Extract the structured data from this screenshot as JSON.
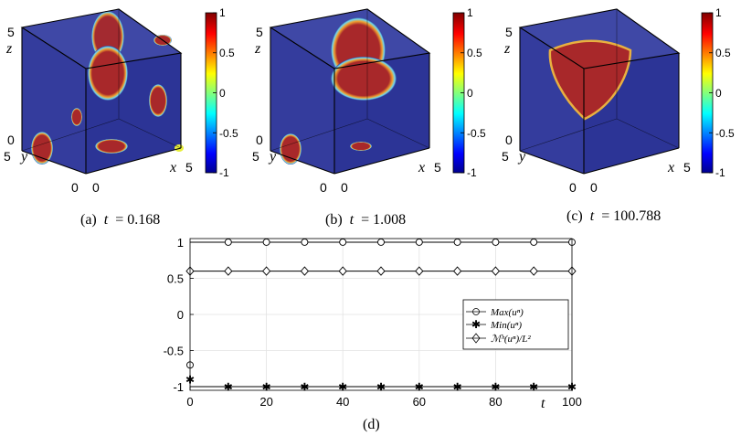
{
  "panels": [
    {
      "caption_label": "(a)",
      "caption_var": "t",
      "caption_eq": "= 0.168",
      "axis": {
        "z_label": "z",
        "y_label": "y",
        "x_label": "x",
        "z_top": "5",
        "z_bottom": "0",
        "y_top": "5",
        "y_bottom": "0",
        "x_left": "0",
        "x_right": "5"
      }
    },
    {
      "caption_label": "(b)",
      "caption_var": "t",
      "caption_eq": "= 1.008",
      "axis": {
        "z_label": "z",
        "y_label": "y",
        "x_label": "x",
        "z_top": "5",
        "z_bottom": "0",
        "y_top": "5",
        "y_bottom": "0",
        "x_left": "0",
        "x_right": "5"
      }
    },
    {
      "caption_label": "(c)",
      "caption_var": "t",
      "caption_eq": "= 100.788",
      "axis": {
        "z_label": "z",
        "y_label": "y",
        "x_label": "x",
        "z_top": "5",
        "z_bottom": "0",
        "y_top": "5",
        "y_bottom": "0",
        "x_left": "0",
        "x_right": "5"
      }
    }
  ],
  "colorbar": {
    "ticks": [
      "1",
      "0.5",
      "0",
      "-0.5",
      "-1"
    ],
    "colors": [
      "#00008f",
      "#0000ff",
      "#00ffff",
      "#ffff00",
      "#ff0000",
      "#800000"
    ]
  },
  "volume_colors": {
    "background": "#30399a",
    "blob": "#a8282a",
    "edge": "#e8ee3a"
  },
  "chart_data": {
    "type": "line",
    "title": "",
    "caption": "(d)",
    "xlabel": "t",
    "ylabel": "",
    "xlim": [
      0,
      100
    ],
    "ylim": [
      -1.05,
      1.05
    ],
    "xticks": [
      0,
      20,
      40,
      60,
      80,
      100
    ],
    "yticks": [
      1,
      0.5,
      0,
      -0.5,
      -1
    ],
    "ytick_labels": [
      "1",
      "0.5",
      "0",
      "-0.5",
      "-1"
    ],
    "grid": true,
    "legend_position": "right",
    "series": [
      {
        "name": "Max(u^n)",
        "legend_text": "Max(uⁿ)",
        "marker": "circle",
        "x": [
          0,
          10,
          20,
          30,
          40,
          50,
          60,
          70,
          80,
          90,
          100
        ],
        "y": [
          -0.7,
          1,
          1,
          1,
          1,
          1,
          1,
          1,
          1,
          1,
          1
        ],
        "line_start": 0,
        "line_value": 1
      },
      {
        "name": "Min(u^n)",
        "legend_text": "Min(uⁿ)",
        "marker": "star",
        "x": [
          0,
          10,
          20,
          30,
          40,
          50,
          60,
          70,
          80,
          90,
          100
        ],
        "y": [
          -0.9,
          -1,
          -1,
          -1,
          -1,
          -1,
          -1,
          -1,
          -1,
          -1,
          -1
        ],
        "line_start": 0,
        "line_value": -1
      },
      {
        "name": "M^h(u^n)/L^2",
        "legend_text": "ℳʰ(uⁿ)/L²",
        "marker": "diamond",
        "x": [
          0,
          10,
          20,
          30,
          40,
          50,
          60,
          70,
          80,
          90,
          100
        ],
        "y": [
          0.6,
          0.6,
          0.6,
          0.6,
          0.6,
          0.6,
          0.6,
          0.6,
          0.6,
          0.6,
          0.6
        ],
        "line_start": 0,
        "line_value": 0.6
      }
    ]
  }
}
